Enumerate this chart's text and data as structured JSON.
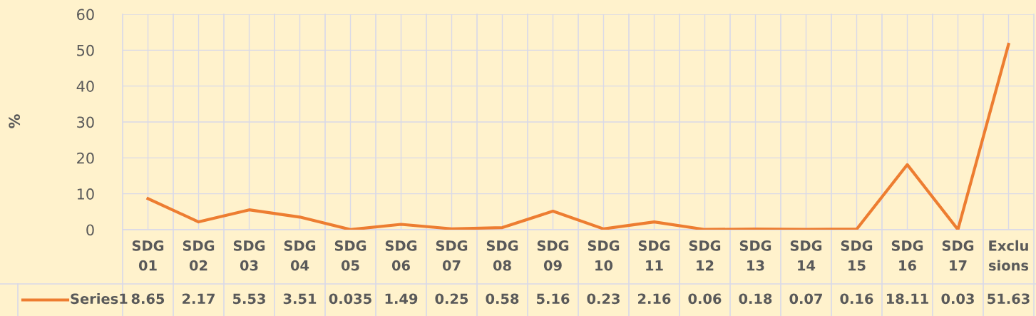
{
  "chart_data": {
    "type": "line",
    "ylabel": "%",
    "categories": [
      "SDG 01",
      "SDG 02",
      "SDG 03",
      "SDG 04",
      "SDG 05",
      "SDG 06",
      "SDG 07",
      "SDG 08",
      "SDG 09",
      "SDG 10",
      "SDG 11",
      "SDG 12",
      "SDG 13",
      "SDG 14",
      "SDG 15",
      "SDG 16",
      "SDG 17",
      "Exclusions"
    ],
    "series": [
      {
        "name": "Series1",
        "color": "#ed7d31",
        "values": [
          8.65,
          2.17,
          5.53,
          3.51,
          0.035,
          1.49,
          0.25,
          0.58,
          5.16,
          0.23,
          2.16,
          0.06,
          0.18,
          0.07,
          0.16,
          18.11,
          0.03,
          51.63
        ]
      }
    ],
    "ylim": [
      0,
      60
    ],
    "yticks": [
      0,
      10,
      20,
      30,
      40,
      50,
      60
    ],
    "grid": true,
    "legend": "bottom",
    "data_labels": true,
    "marker": "none",
    "line_style": "solid"
  }
}
